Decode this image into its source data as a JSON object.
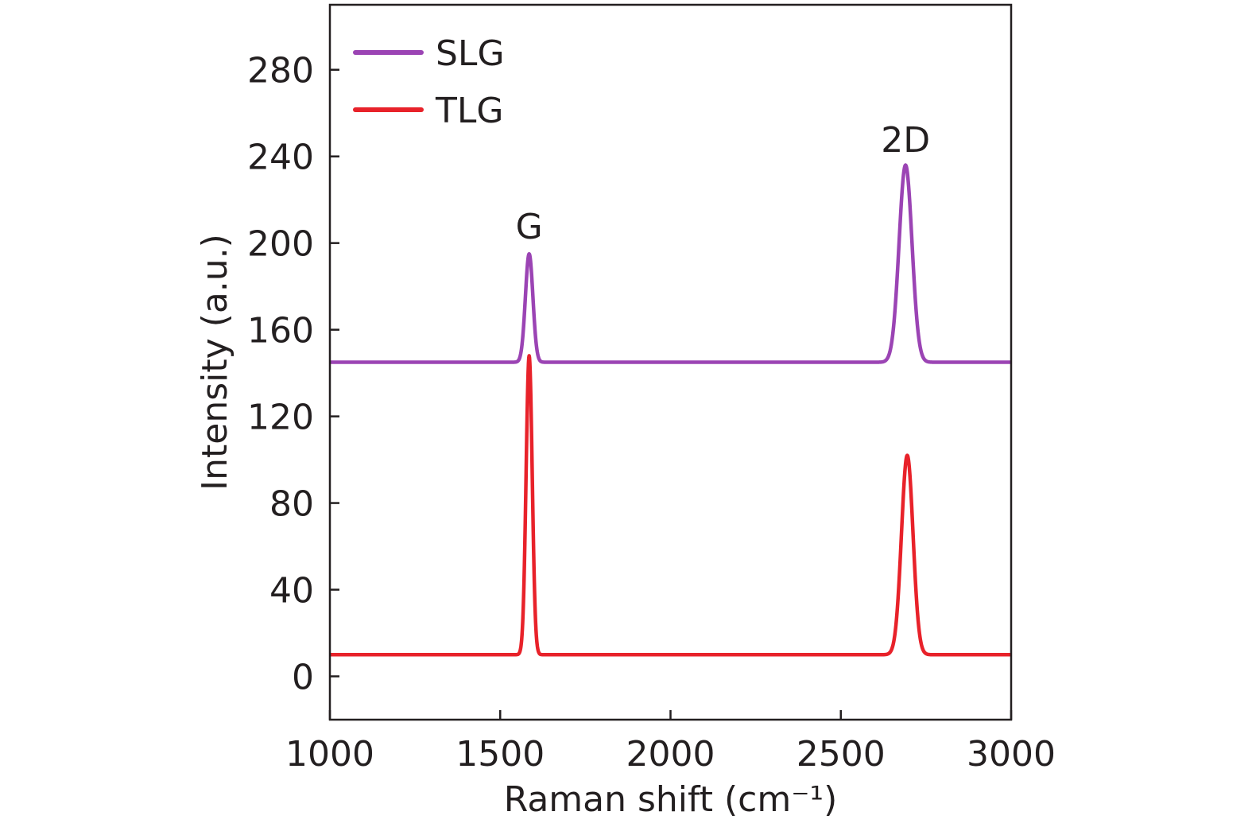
{
  "chart_data": {
    "type": "line",
    "title": "",
    "xlabel": "Raman shift (cm⁻¹)",
    "ylabel": "Intensity (a.u.)",
    "xlim": [
      1000,
      3000
    ],
    "ylim": [
      -20,
      310
    ],
    "xticks": [
      1000,
      1500,
      2000,
      2500,
      3000
    ],
    "yticks": [
      0,
      40,
      80,
      120,
      160,
      200,
      240,
      280
    ],
    "xtick_labels": [
      "1000",
      "1500",
      "2000",
      "2500",
      "3000"
    ],
    "ytick_labels": [
      "0",
      "40",
      "80",
      "120",
      "160",
      "200",
      "240",
      "280"
    ],
    "legend_position": "top-left",
    "series": [
      {
        "name": "SLG",
        "color": "#9b44b4",
        "baseline": 145,
        "peaks": [
          {
            "center": 1585,
            "height": 50,
            "sigma": 11
          },
          {
            "center": 2690,
            "height": 91,
            "sigma": 19
          }
        ]
      },
      {
        "name": "TLG",
        "color": "#e8222a",
        "baseline": 10,
        "peaks": [
          {
            "center": 1585,
            "height": 138,
            "sigma": 9
          },
          {
            "center": 2695,
            "height": 92,
            "sigma": 17
          }
        ]
      }
    ],
    "annotations": [
      {
        "text": "G",
        "x": 1585,
        "y": 208
      },
      {
        "text": "2D",
        "x": 2690,
        "y": 248
      }
    ]
  }
}
